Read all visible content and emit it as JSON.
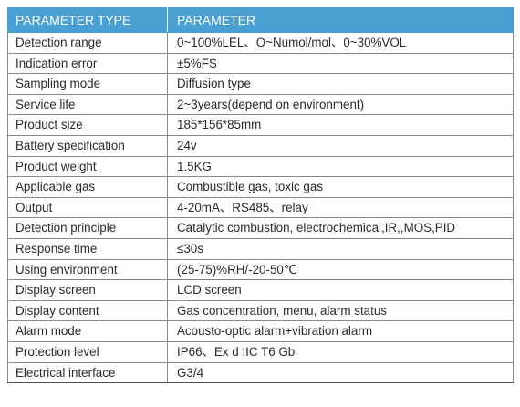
{
  "table": {
    "headers": [
      "PARAMETER TYPE",
      "PARAMETER"
    ],
    "rows": [
      [
        "Detection range",
        "0~100%LEL、O~Numol/mol、0~30%VOL"
      ],
      [
        "Indication error",
        "±5%FS"
      ],
      [
        "Sampling mode",
        "Diffusion type"
      ],
      [
        "Service life",
        "2~3years(depend on environment)"
      ],
      [
        "Product size",
        "185*156*85mm"
      ],
      [
        "Battery specification",
        "24v"
      ],
      [
        "Product weight",
        "1.5KG"
      ],
      [
        "Applicable gas",
        "Combustible gas, toxic gas"
      ],
      [
        "Output",
        "4-20mA、RS485、relay"
      ],
      [
        "Detection principle",
        "Catalytic combustion, electrochemical,IR,,MOS,PID"
      ],
      [
        "Response time",
        "≤30s"
      ],
      [
        "Using environment",
        "(25-75)%RH/-20-50℃"
      ],
      [
        "Display screen",
        "LCD screen"
      ],
      [
        "Display content",
        "Gas concentration, menu, alarm status"
      ],
      [
        "Alarm mode",
        "Acousto-optic alarm+vibration alarm"
      ],
      [
        "Protection level",
        "IP66、Ex d IIC T6 Gb"
      ],
      [
        "Electrical interface",
        "G3/4"
      ]
    ]
  },
  "colors": {
    "header_bg": "#4a9fd3",
    "header_text": "#ffffff",
    "border": "#8a8a8a"
  }
}
